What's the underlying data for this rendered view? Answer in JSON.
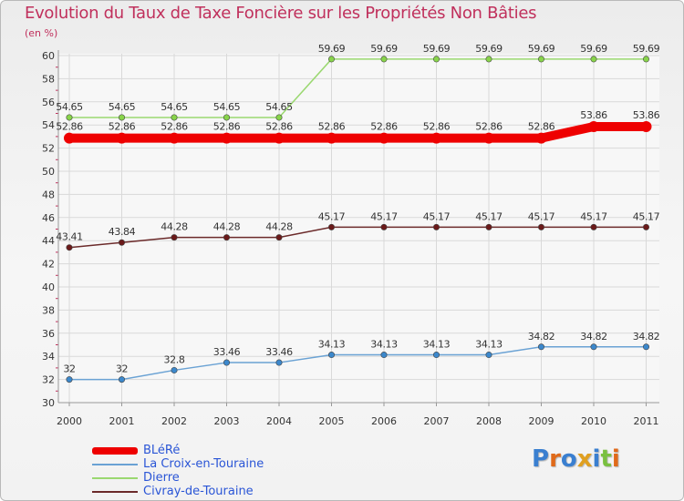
{
  "chart_data": {
    "type": "line",
    "title": "Evolution du Taux de Taxe Foncière sur les Propriétés Non Bâties",
    "unit_label": "(en %)",
    "xlabel": "",
    "ylabel": "",
    "categories": [
      "2000",
      "2001",
      "2002",
      "2003",
      "2004",
      "2005",
      "2006",
      "2007",
      "2008",
      "2009",
      "2010",
      "2011"
    ],
    "ylim": [
      30,
      60
    ],
    "yticks": [
      "30",
      "32",
      "34",
      "36",
      "38",
      "40",
      "42",
      "44",
      "46",
      "48",
      "50",
      "52",
      "54",
      "56",
      "58",
      "60"
    ],
    "grid": true,
    "legend_position": "bottom-left",
    "series": [
      {
        "name": "Dierre",
        "color": "#88d44a",
        "line_color": "#9ad870",
        "emphasis": false,
        "values": [
          54.65,
          54.65,
          54.65,
          54.65,
          54.65,
          59.69,
          59.69,
          59.69,
          59.69,
          59.69,
          59.69,
          59.69
        ],
        "labels": [
          "54.65",
          "54.65",
          "54.65",
          "54.65",
          "54.65",
          "59.69",
          "59.69",
          "59.69",
          "59.69",
          "59.69",
          "59.69",
          "59.69"
        ]
      },
      {
        "name": "BLéRé",
        "color": "#ee0000",
        "line_color": "#ee0000",
        "emphasis": true,
        "values": [
          52.86,
          52.86,
          52.86,
          52.86,
          52.86,
          52.86,
          52.86,
          52.86,
          52.86,
          52.86,
          53.86,
          53.86
        ],
        "labels": [
          "52.86",
          "52.86",
          "52.86",
          "52.86",
          "52.86",
          "52.86",
          "52.86",
          "52.86",
          "52.86",
          "52.86",
          "53.86",
          "53.86"
        ]
      },
      {
        "name": "Civray-de-Touraine",
        "color": "#6b1a1a",
        "line_color": "#6b2a2a",
        "emphasis": false,
        "values": [
          43.41,
          43.84,
          44.28,
          44.28,
          44.28,
          45.17,
          45.17,
          45.17,
          45.17,
          45.17,
          45.17,
          45.17
        ],
        "labels": [
          "43.41",
          "43.84",
          "44.28",
          "44.28",
          "44.28",
          "45.17",
          "45.17",
          "45.17",
          "45.17",
          "45.17",
          "45.17",
          "45.17"
        ]
      },
      {
        "name": "La Croix-en-Touraine",
        "color": "#3c88cc",
        "line_color": "#6aa2d4",
        "emphasis": false,
        "values": [
          32,
          32,
          32.8,
          33.46,
          33.46,
          34.13,
          34.13,
          34.13,
          34.13,
          34.82,
          34.82,
          34.82
        ],
        "labels": [
          "32",
          "32",
          "32.8",
          "33.46",
          "33.46",
          "34.13",
          "34.13",
          "34.13",
          "34.13",
          "34.82",
          "34.82",
          "34.82"
        ]
      }
    ],
    "legend": [
      {
        "name": "BLéRé",
        "color": "#ee0000",
        "emphasis": true
      },
      {
        "name": "La Croix-en-Touraine",
        "color": "#6aa2d4",
        "emphasis": false
      },
      {
        "name": "Dierre",
        "color": "#9ad870",
        "emphasis": false
      },
      {
        "name": "Civray-de-Touraine",
        "color": "#6b2a2a",
        "emphasis": false
      }
    ]
  },
  "logo": {
    "text": "Proxiti",
    "letter_colors": [
      "#3a7fd0",
      "#e06a1a",
      "#3a7fd0",
      "#e0a020",
      "#3a7fd0",
      "#7ac040",
      "#e06a1a"
    ]
  }
}
